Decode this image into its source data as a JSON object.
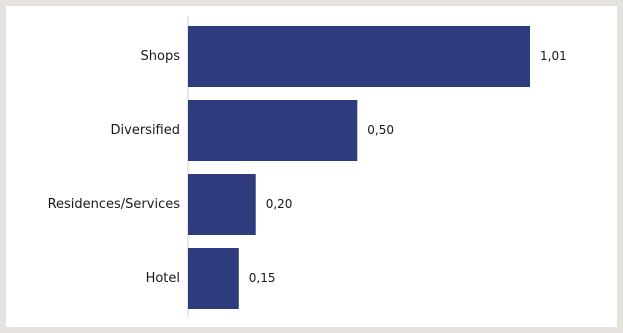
{
  "chart_data": {
    "type": "bar",
    "orientation": "horizontal",
    "categories": [
      "Shops",
      "Diversified",
      "Residences/Services",
      "Hotel"
    ],
    "values": [
      1.01,
      0.5,
      0.2,
      0.15
    ],
    "value_labels": [
      "1,01",
      "0,50",
      "0,20",
      "0,15"
    ],
    "xlim": [
      0,
      1.01
    ],
    "grid": false,
    "colors": {
      "bar": "#2e3c7e",
      "axis": "#cfcfcf",
      "text": "#1a1a1a",
      "frame": "#e6e3df",
      "panel": "#ffffff"
    }
  }
}
